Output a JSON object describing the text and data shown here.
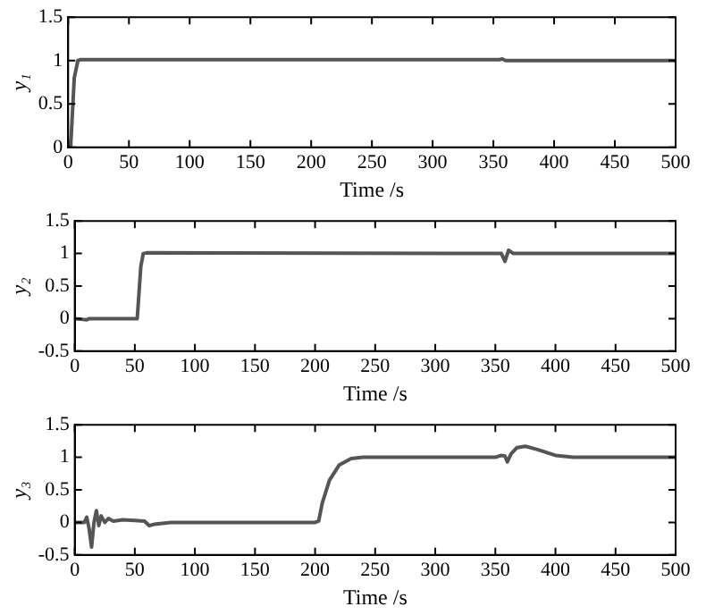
{
  "chart_data": [
    {
      "type": "line",
      "xlabel": "Time /s",
      "ylabel": "y₁",
      "xlim": [
        0,
        500
      ],
      "xticks": [
        0,
        50,
        100,
        150,
        200,
        250,
        300,
        350,
        400,
        450,
        500
      ],
      "ylim": [
        0,
        1.5
      ],
      "yticks": [
        0,
        0.5,
        1,
        1.5
      ],
      "grid": false,
      "legend": false,
      "marker": "none",
      "line_style": "solid",
      "series": [
        {
          "color": "#555555",
          "x": [
            0,
            2,
            5,
            8,
            10,
            50,
            355,
            357,
            360,
            500
          ],
          "values": [
            0,
            0,
            0.8,
            1.0,
            1.01,
            1.01,
            1.01,
            1.02,
            1.0,
            1.0
          ]
        }
      ]
    },
    {
      "type": "line",
      "xlabel": "Time /s",
      "ylabel": "y₂",
      "xlim": [
        0,
        500
      ],
      "xticks": [
        0,
        50,
        100,
        150,
        200,
        250,
        300,
        350,
        400,
        450,
        500
      ],
      "ylim": [
        -0.5,
        1.5
      ],
      "yticks": [
        -0.5,
        0,
        0.5,
        1,
        1.5
      ],
      "grid": false,
      "legend": false,
      "marker": "none",
      "line_style": "solid",
      "series": [
        {
          "color": "#555555",
          "x": [
            0,
            5,
            10,
            12,
            52,
            55,
            57,
            60,
            355,
            358,
            361,
            365,
            500
          ],
          "values": [
            0,
            -0.01,
            -0.02,
            0,
            0,
            0.8,
            1.0,
            1.01,
            1.0,
            0.88,
            1.05,
            1.0,
            1.0
          ]
        }
      ]
    },
    {
      "type": "line",
      "xlabel": "Time /s",
      "ylabel": "y₃",
      "xlim": [
        0,
        500
      ],
      "xticks": [
        0,
        50,
        100,
        150,
        200,
        250,
        300,
        350,
        400,
        450,
        500
      ],
      "ylim": [
        -0.5,
        1.5
      ],
      "yticks": [
        -0.5,
        0,
        0.5,
        1,
        1.5
      ],
      "grid": false,
      "legend": false,
      "marker": "none",
      "line_style": "solid",
      "series": [
        {
          "color": "#555555",
          "x": [
            0,
            8,
            10,
            12,
            14,
            16,
            18,
            20,
            22,
            25,
            28,
            32,
            40,
            50,
            58,
            62,
            66,
            80,
            200,
            203,
            206,
            212,
            220,
            230,
            240,
            350,
            355,
            358,
            360,
            363,
            368,
            375,
            385,
            400,
            415,
            500
          ],
          "values": [
            0,
            0,
            0.08,
            -0.1,
            -0.38,
            0,
            0.18,
            -0.05,
            0.1,
            0,
            0.06,
            0.02,
            0.04,
            0.03,
            0.02,
            -0.05,
            -0.03,
            0,
            0,
            0.02,
            0.3,
            0.65,
            0.88,
            0.98,
            1.0,
            1.0,
            1.03,
            1.02,
            0.93,
            1.05,
            1.15,
            1.17,
            1.12,
            1.03,
            1.0,
            1.0
          ]
        }
      ]
    }
  ]
}
